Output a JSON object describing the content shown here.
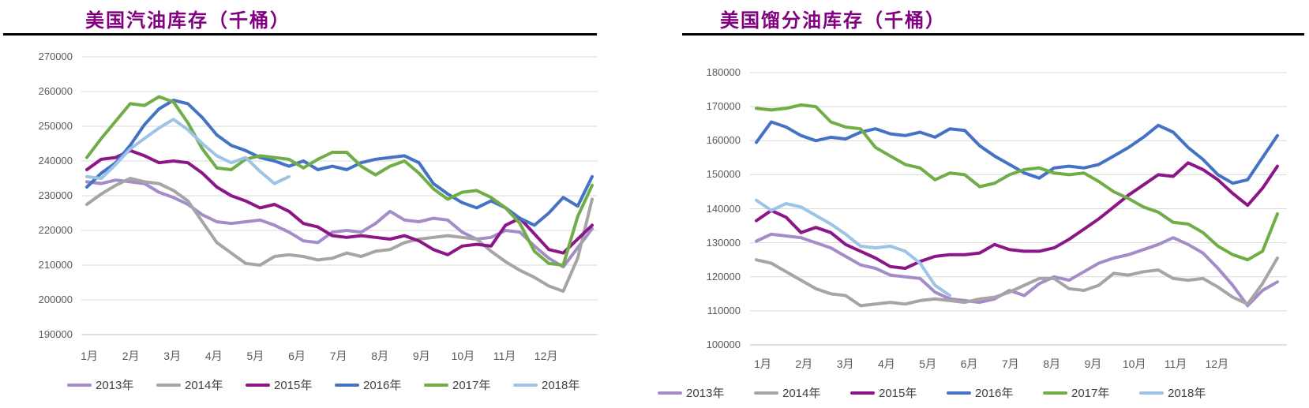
{
  "page": {
    "background": "#ffffff",
    "text_color": "#595959"
  },
  "charts": [
    {
      "title": "美国汽油库存（千桶）",
      "title_color": "#800080",
      "y_ticks": [
        "270000",
        "260000",
        "250000",
        "240000",
        "230000",
        "220000",
        "210000",
        "200000",
        "190000"
      ],
      "x_labels": [
        "1月",
        "2月",
        "3月",
        "4月",
        "5月",
        "6月",
        "7月",
        "8月",
        "9月",
        "10月",
        "11月",
        "12月"
      ],
      "legend": [
        "2013年",
        "2014年",
        "2015年",
        "2016年",
        "2017年",
        "2018年"
      ],
      "chart_data": {
        "type": "line",
        "title": "美国汽油库存（千桶）",
        "ylim": [
          190000,
          270000
        ],
        "y_tick_step": 10000,
        "categories": [
          "1月",
          "2月",
          "3月",
          "4月",
          "5月",
          "6月",
          "7月",
          "8月",
          "9月",
          "10月",
          "11月",
          "12月"
        ],
        "grid": "horizontal",
        "legend_position": "bottom",
        "series": [
          {
            "name": "2013年",
            "color": "#A48CC9",
            "values": [
              234000,
              233500,
              234500,
              234000,
              233500,
              231000,
              229500,
              227500,
              224500,
              222500,
              222000,
              222500,
              223000,
              221500,
              219500,
              217000,
              216500,
              219500,
              220000,
              219500,
              222000,
              225500,
              223000,
              222500,
              223500,
              223000,
              219500,
              217500,
              218000,
              220000,
              219500,
              215500,
              212000,
              209500,
              215000,
              220500
            ]
          },
          {
            "name": "2014年",
            "color": "#A5A5A5",
            "values": [
              227500,
              230500,
              233000,
              235000,
              234000,
              233500,
              231500,
              228500,
              222500,
              216500,
              213500,
              210500,
              210000,
              212500,
              213000,
              212500,
              211500,
              212000,
              213500,
              212500,
              214000,
              214500,
              216500,
              217500,
              218000,
              218500,
              218000,
              217500,
              214000,
              211000,
              208500,
              206500,
              204000,
              202500,
              212000,
              229000
            ]
          },
          {
            "name": "2015年",
            "color": "#8C1588",
            "values": [
              237500,
              240500,
              241000,
              243000,
              241500,
              239500,
              240000,
              239500,
              236500,
              232500,
              230000,
              228500,
              226500,
              227500,
              225500,
              222000,
              221000,
              218500,
              218000,
              218500,
              218000,
              217500,
              218500,
              217000,
              214500,
              213000,
              215500,
              216000,
              215500,
              221500,
              223500,
              219000,
              214500,
              213500,
              217500,
              221500
            ]
          },
          {
            "name": "2016年",
            "color": "#4472C4",
            "values": [
              232500,
              236500,
              239500,
              244500,
              250500,
              255000,
              257500,
              256500,
              252500,
              247500,
              244500,
              243000,
              241000,
              240000,
              238500,
              240000,
              237500,
              238500,
              237500,
              239500,
              240500,
              241000,
              241500,
              239500,
              233500,
              230500,
              228000,
              226500,
              228500,
              226500,
              223500,
              221500,
              225000,
              229500,
              227000,
              235500
            ]
          },
          {
            "name": "2017年",
            "color": "#70AD47",
            "values": [
              241000,
              246500,
              251500,
              256500,
              256000,
              258500,
              257000,
              251000,
              243500,
              238000,
              237500,
              240500,
              241500,
              241000,
              240500,
              238000,
              240500,
              242500,
              242500,
              238500,
              236000,
              238500,
              240000,
              236500,
              232000,
              229000,
              231000,
              231500,
              229500,
              226500,
              222000,
              214000,
              210500,
              210000,
              224000,
              233000
            ]
          },
          {
            "name": "2018年",
            "color": "#9DC3E6",
            "values": [
              235500,
              235000,
              239000,
              243500,
              246500,
              249500,
              252000,
              249000,
              245000,
              241500,
              239500,
              241000,
              237000,
              233500,
              235500
            ]
          }
        ]
      }
    },
    {
      "title": "美国馏分油库存（千桶）",
      "title_color": "#800080",
      "y_ticks": [
        "180000",
        "170000",
        "160000",
        "150000",
        "140000",
        "130000",
        "120000",
        "110000",
        "100000"
      ],
      "x_labels": [
        "1月",
        "2月",
        "3月",
        "4月",
        "5月",
        "6月",
        "7月",
        "8月",
        "9月",
        "10月",
        "11月",
        "12月"
      ],
      "legend": [
        "2013年",
        "2014年",
        "2015年",
        "2016年",
        "2017年",
        "2018年"
      ],
      "chart_data": {
        "type": "line",
        "title": "美国馏分油库存（千桶）",
        "ylim": [
          100000,
          180000
        ],
        "y_tick_step": 10000,
        "categories": [
          "1月",
          "2月",
          "3月",
          "4月",
          "5月",
          "6月",
          "7月",
          "8月",
          "9月",
          "10月",
          "11月",
          "12月"
        ],
        "grid": "horizontal",
        "legend_position": "bottom",
        "series": [
          {
            "name": "2013年",
            "color": "#A48CC9",
            "values": [
              130500,
              132500,
              132000,
              131500,
              130000,
              128500,
              126000,
              123500,
              122500,
              120500,
              120000,
              119500,
              115500,
              113500,
              113000,
              112500,
              113500,
              116000,
              114500,
              118000,
              120000,
              119000,
              121500,
              124000,
              125500,
              126500,
              128000,
              129500,
              131500,
              129500,
              127000,
              122500,
              117500,
              111500,
              116000,
              118500
            ]
          },
          {
            "name": "2014年",
            "color": "#A5A5A5",
            "values": [
              125000,
              124000,
              121500,
              119000,
              116500,
              115000,
              114500,
              111500,
              112000,
              112500,
              112000,
              113000,
              113500,
              113000,
              112500,
              113500,
              114000,
              115500,
              117500,
              119500,
              119500,
              116500,
              116000,
              117500,
              121000,
              120500,
              121500,
              122000,
              119500,
              119000,
              119500,
              117000,
              114000,
              112000,
              118000,
              125500
            ]
          },
          {
            "name": "2015年",
            "color": "#8C1588",
            "values": [
              136500,
              139500,
              137500,
              133000,
              134500,
              133000,
              129500,
              127500,
              125500,
              123000,
              122500,
              124500,
              126000,
              126500,
              126500,
              127000,
              129500,
              128000,
              127500,
              127500,
              128500,
              131000,
              134000,
              137000,
              140500,
              144000,
              147000,
              150000,
              149500,
              153500,
              151500,
              148500,
              144500,
              141000,
              146000,
              152500
            ]
          },
          {
            "name": "2016年",
            "color": "#4472C4",
            "values": [
              159500,
              165500,
              164000,
              161500,
              160000,
              161000,
              160500,
              162500,
              163500,
              162000,
              161500,
              162500,
              161000,
              163500,
              163000,
              158500,
              155500,
              153000,
              150500,
              149000,
              152000,
              152500,
              152000,
              153000,
              155500,
              158000,
              161000,
              164500,
              162500,
              158000,
              154500,
              150000,
              147500,
              148500,
              155000,
              161500
            ]
          },
          {
            "name": "2017年",
            "color": "#70AD47",
            "values": [
              169500,
              169000,
              169500,
              170500,
              170000,
              165500,
              164000,
              163500,
              158000,
              155500,
              153000,
              152000,
              148500,
              150500,
              150000,
              146500,
              147500,
              150000,
              151500,
              152000,
              150500,
              150000,
              150500,
              148000,
              145000,
              143000,
              140500,
              139000,
              136000,
              135500,
              133000,
              129000,
              126500,
              125000,
              127500,
              138500
            ]
          },
          {
            "name": "2018年",
            "color": "#9DC3E6",
            "values": [
              142500,
              139500,
              141500,
              140500,
              138000,
              135500,
              132500,
              129000,
              128500,
              129000,
              127500,
              124000,
              117500,
              114500
            ]
          }
        ]
      }
    }
  ]
}
